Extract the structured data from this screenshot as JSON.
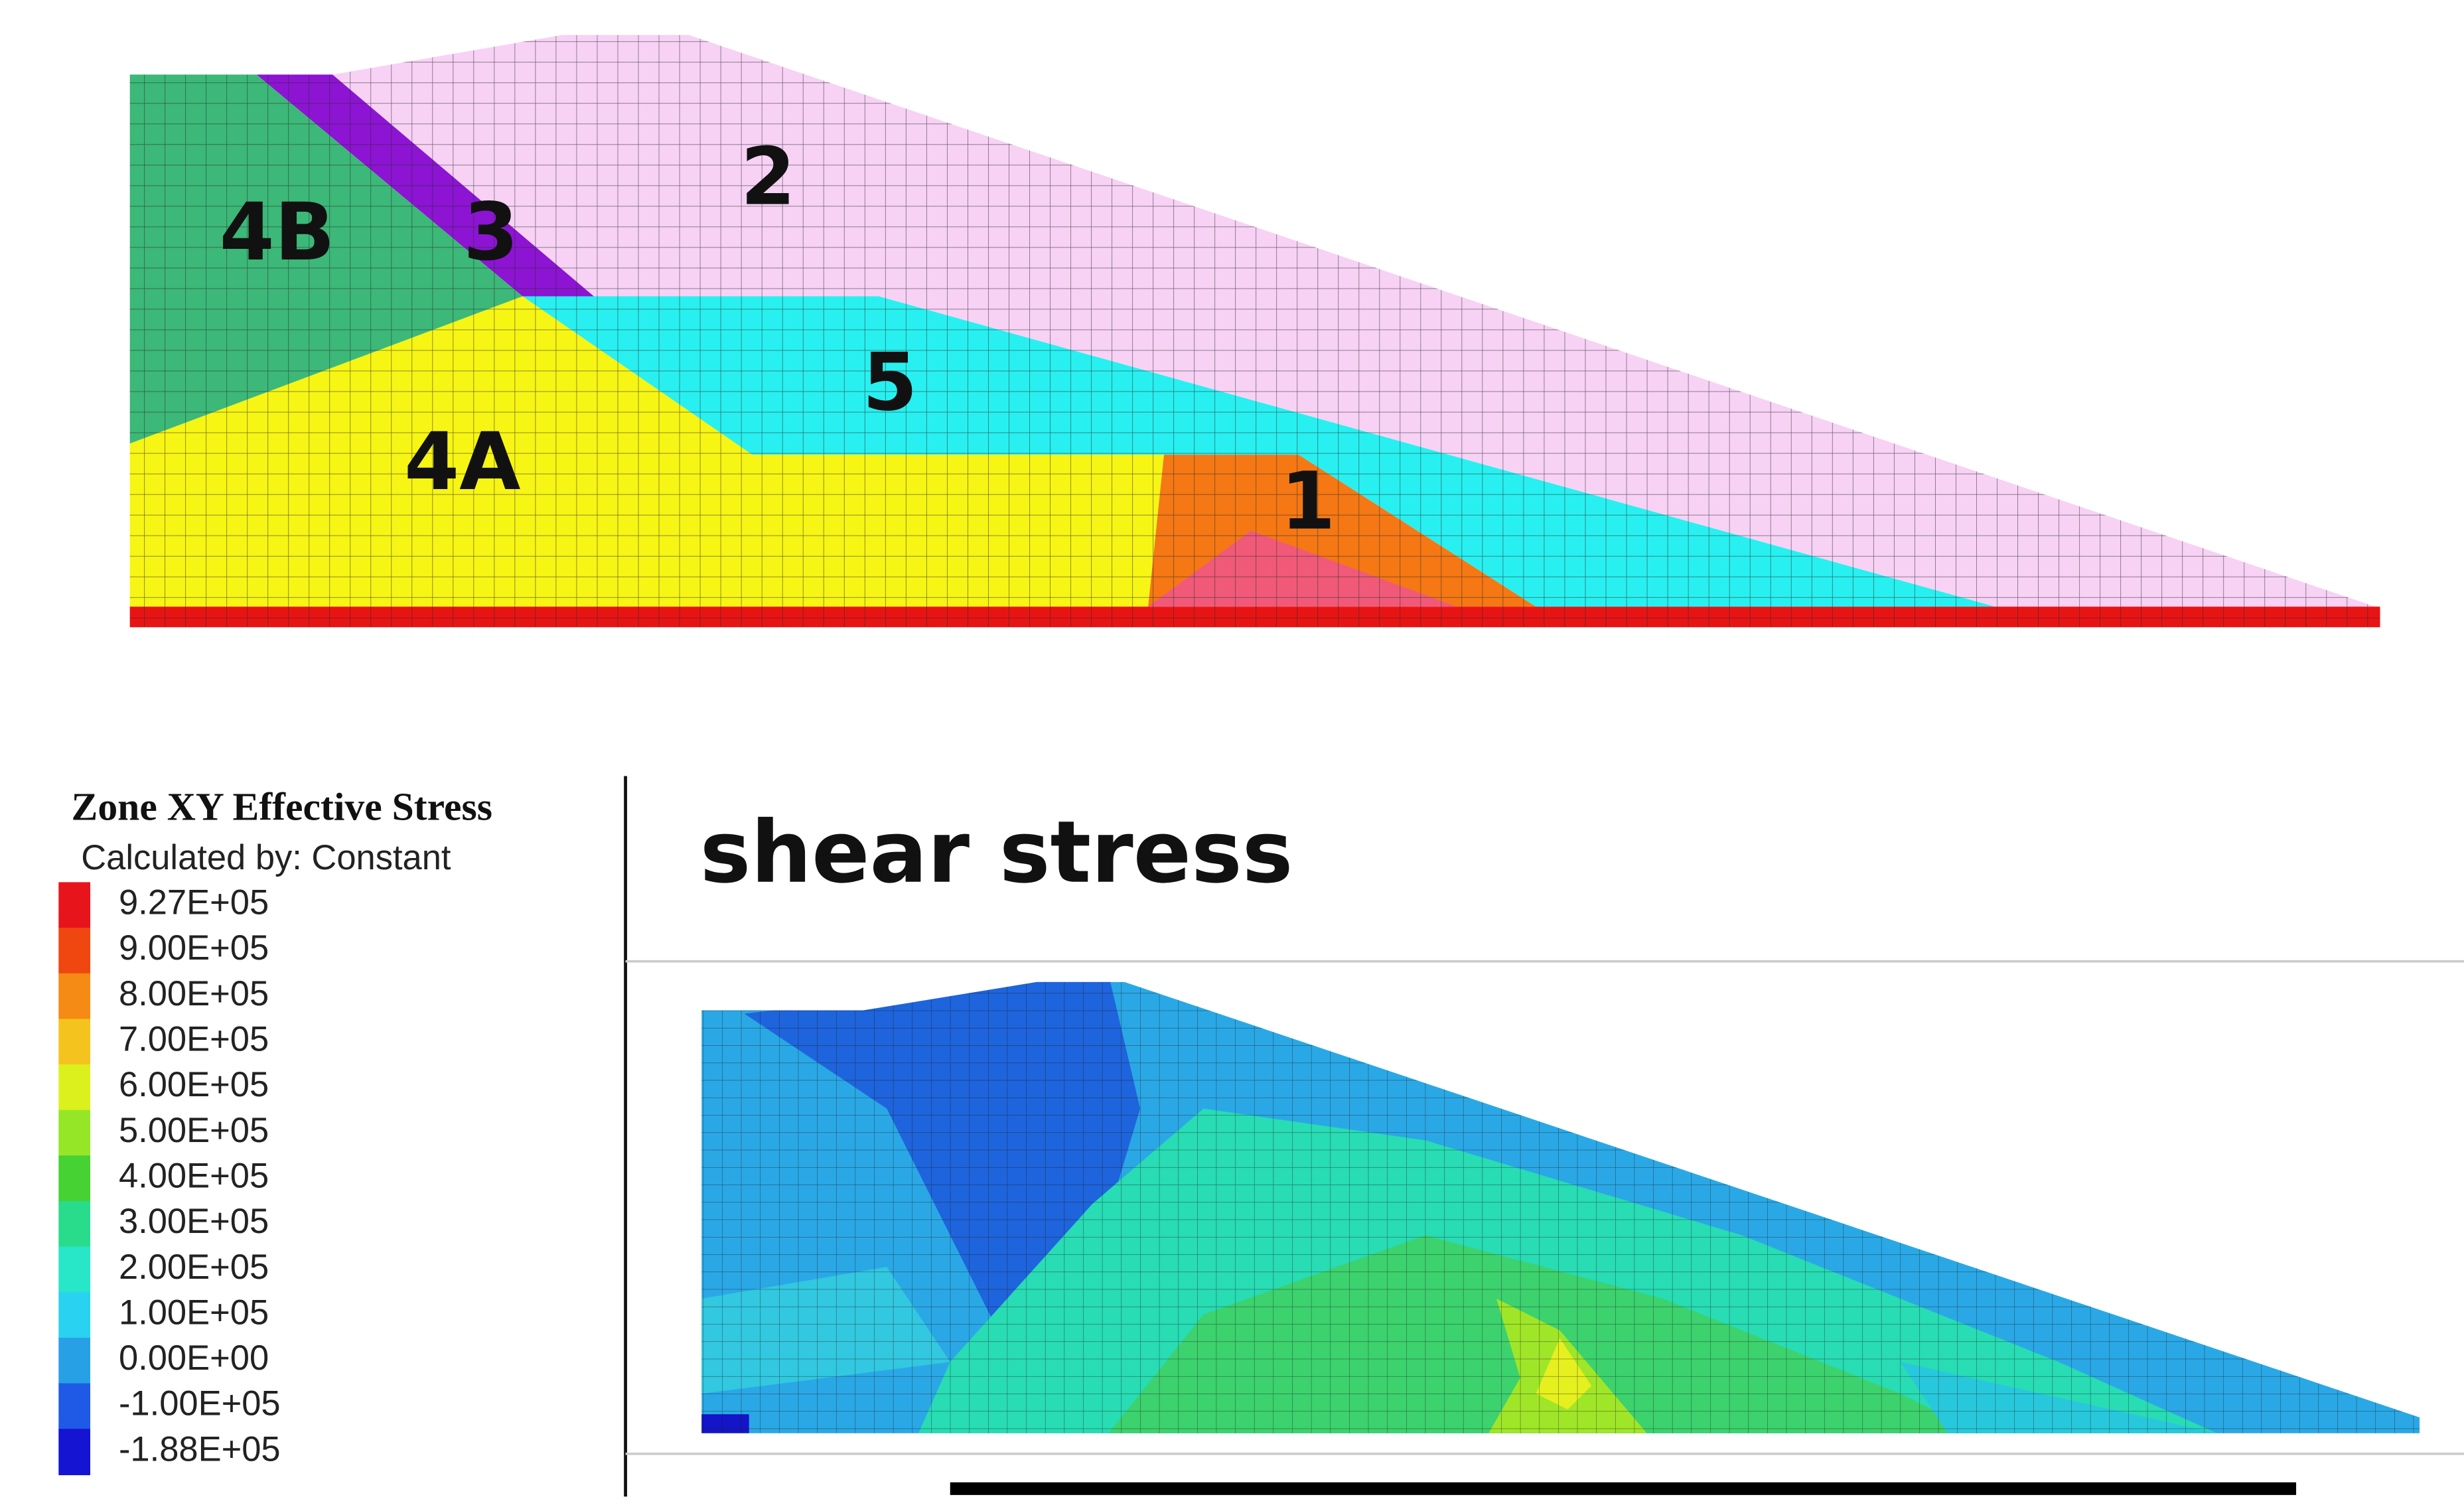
{
  "top_panel": {
    "zones": [
      {
        "label": "4B",
        "color": "#3cb878"
      },
      {
        "label": "3",
        "color": "#8c14d2"
      },
      {
        "label": "2",
        "color": "#f7d2f5"
      },
      {
        "label": "5",
        "color": "#28f0f0"
      },
      {
        "label": "4A",
        "color": "#f7f514"
      },
      {
        "label": "1",
        "color": "#f57814"
      }
    ]
  },
  "legend": {
    "title": "Zone XY Effective Stress",
    "subtitle": "Calculated by: Constant",
    "entries": [
      {
        "label": "9.27E+05",
        "color": "#e8141c"
      },
      {
        "label": "9.00E+05",
        "color": "#f0460f"
      },
      {
        "label": "8.00E+05",
        "color": "#f58a14"
      },
      {
        "label": "7.00E+05",
        "color": "#f5c31e"
      },
      {
        "label": "6.00E+05",
        "color": "#dcf01e"
      },
      {
        "label": "5.00E+05",
        "color": "#96e628"
      },
      {
        "label": "4.00E+05",
        "color": "#46d232"
      },
      {
        "label": "3.00E+05",
        "color": "#28dc8c"
      },
      {
        "label": "2.00E+05",
        "color": "#28e6c8"
      },
      {
        "label": "1.00E+05",
        "color": "#28d2f0"
      },
      {
        "label": "0.00E+00",
        "color": "#28a0e6"
      },
      {
        "label": "-1.00E+05",
        "color": "#1e5ae6"
      },
      {
        "label": "-1.88E+05",
        "color": "#1414d2"
      }
    ]
  },
  "bottom_panel": {
    "title": "shear stress"
  }
}
